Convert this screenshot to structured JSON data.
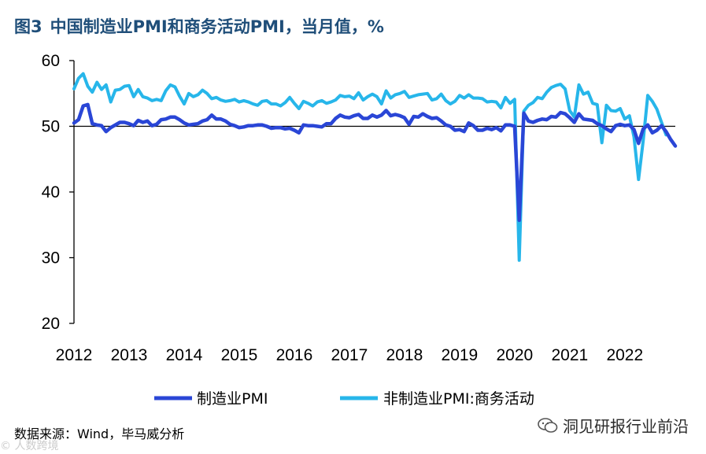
{
  "header": {
    "figure_number": "图3",
    "title": "中国制造业PMI和商务活动PMI，当月值，%"
  },
  "footer": {
    "source": "数据来源：Wind，毕马威分析",
    "watermark": "洞见研报行业前沿",
    "corner_watermark": "© 人数跨境"
  },
  "colors": {
    "series1": "#2a46d6",
    "series2": "#27b6ea",
    "title": "#1f4e79",
    "axis": "#000000"
  },
  "icons": {
    "watermark": "wechat-icon"
  },
  "chart_data": {
    "type": "line",
    "title": "中国制造业PMI和商务活动PMI，当月值，%",
    "xlabel": "",
    "ylabel": "",
    "ylim": [
      20,
      60
    ],
    "yticks": [
      20,
      30,
      40,
      50,
      60
    ],
    "xlim": [
      2012.0,
      2022.917
    ],
    "xticks": [
      "2012",
      "2013",
      "2014",
      "2015",
      "2016",
      "2017",
      "2018",
      "2019",
      "2020",
      "2021",
      "2022"
    ],
    "reference_line": 50,
    "legend_position": "bottom",
    "start": "2012-01",
    "series": [
      {
        "name": "制造业PMI",
        "values": [
          50.5,
          51.0,
          53.1,
          53.3,
          50.4,
          50.2,
          50.1,
          49.2,
          49.8,
          50.2,
          50.6,
          50.6,
          50.4,
          50.1,
          50.9,
          50.6,
          50.8,
          50.1,
          50.3,
          51.0,
          51.1,
          51.4,
          51.4,
          51.0,
          50.5,
          50.2,
          50.3,
          50.4,
          50.8,
          51.0,
          51.7,
          51.1,
          51.1,
          50.8,
          50.3,
          50.1,
          49.8,
          49.9,
          50.1,
          50.1,
          50.2,
          50.2,
          50.0,
          49.7,
          49.8,
          49.8,
          49.6,
          49.7,
          49.4,
          49.0,
          50.2,
          50.1,
          50.1,
          50.0,
          49.9,
          50.4,
          50.4,
          51.2,
          51.7,
          51.4,
          51.3,
          51.6,
          51.8,
          51.2,
          51.2,
          51.7,
          51.4,
          51.7,
          52.4,
          51.6,
          51.8,
          51.6,
          51.3,
          50.3,
          51.5,
          51.4,
          51.9,
          51.5,
          51.2,
          51.3,
          50.8,
          50.2,
          50.0,
          49.4,
          49.5,
          49.2,
          50.5,
          50.1,
          49.4,
          49.4,
          49.7,
          49.5,
          49.8,
          49.3,
          50.2,
          50.2,
          50.0,
          35.7,
          52.0,
          50.8,
          50.6,
          50.9,
          51.1,
          51.0,
          51.5,
          51.4,
          52.1,
          51.9,
          51.3,
          50.6,
          51.9,
          51.1,
          51.0,
          50.9,
          50.4,
          50.1,
          49.6,
          49.2,
          50.1,
          50.3,
          50.1,
          50.2,
          49.5,
          47.4,
          49.6,
          50.2,
          49.0,
          49.4,
          50.1,
          49.2,
          48.0,
          47.0
        ]
      },
      {
        "name": "非制造业PMI:商务活动",
        "values": [
          55.7,
          57.3,
          58.0,
          56.1,
          55.2,
          56.7,
          55.6,
          56.3,
          53.7,
          55.5,
          55.6,
          56.1,
          56.2,
          54.5,
          55.6,
          54.5,
          54.3,
          53.9,
          54.1,
          53.9,
          55.4,
          56.3,
          56.0,
          54.6,
          53.4,
          55.0,
          54.5,
          54.8,
          55.5,
          55.0,
          54.2,
          54.4,
          54.0,
          53.8,
          53.9,
          54.1,
          53.7,
          53.9,
          53.7,
          53.4,
          53.2,
          53.8,
          53.9,
          53.4,
          53.4,
          53.1,
          53.6,
          54.4,
          53.5,
          52.7,
          53.8,
          53.5,
          53.1,
          53.7,
          53.9,
          53.5,
          53.7,
          54.0,
          54.7,
          54.5,
          54.6,
          54.2,
          55.1,
          54.0,
          54.5,
          54.9,
          54.5,
          53.4,
          55.4,
          54.3,
          54.8,
          55.0,
          55.3,
          54.4,
          54.6,
          54.8,
          54.9,
          55.0,
          54.0,
          54.2,
          54.9,
          53.9,
          53.4,
          53.8,
          54.7,
          54.3,
          54.8,
          54.3,
          54.3,
          54.2,
          53.7,
          53.8,
          53.7,
          52.8,
          54.4,
          53.5,
          54.1,
          29.6,
          52.3,
          53.2,
          53.6,
          54.4,
          54.2,
          55.2,
          55.9,
          56.2,
          56.4,
          55.7,
          52.4,
          51.4,
          56.3,
          54.9,
          55.2,
          53.5,
          53.3,
          47.5,
          53.2,
          52.4,
          52.3,
          52.7,
          51.1,
          51.6,
          48.4,
          41.9,
          47.8,
          54.7,
          53.8,
          52.6,
          50.6,
          48.7
        ]
      }
    ]
  },
  "legend": {
    "item1": "制造业PMI",
    "item2": "非制造业PMI:商务活动"
  }
}
